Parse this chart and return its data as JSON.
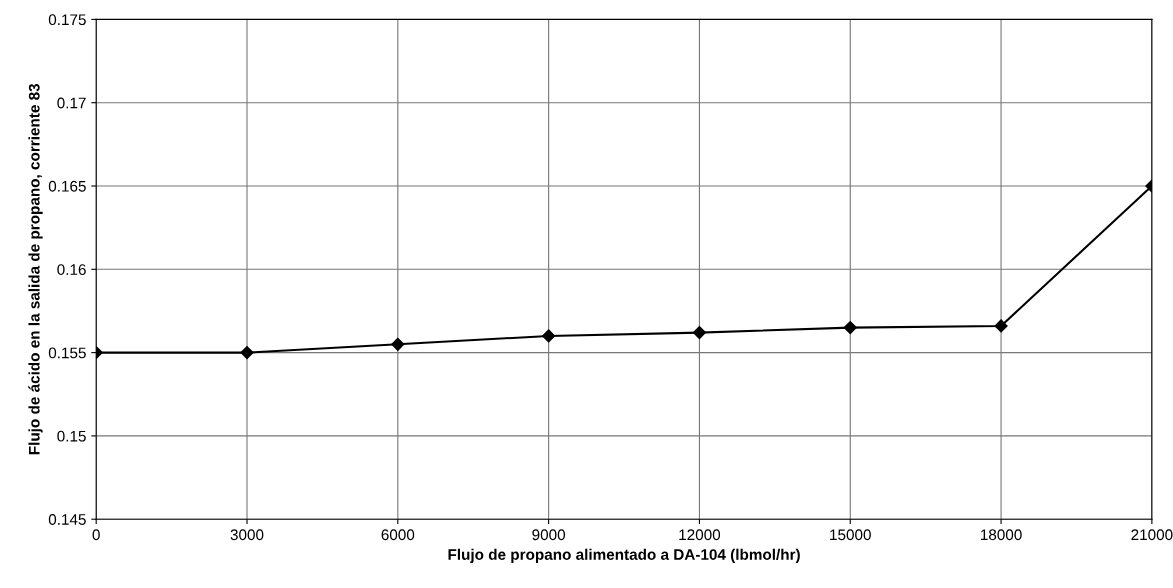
{
  "chart_data": {
    "type": "line",
    "xlabel": "Flujo de propano alimentado a DA-104 (lbmol/hr)",
    "ylabel": "Flujo de ácido en la salida de propano, corriente 83",
    "x": [
      0,
      3000,
      6000,
      9000,
      12000,
      15000,
      18000,
      21000
    ],
    "series": [
      {
        "color": "#000000",
        "values": [
          0.155,
          0.155,
          0.1555,
          0.156,
          0.1562,
          0.1565,
          0.1566,
          0.165
        ]
      }
    ],
    "xlim": [
      0,
      21000
    ],
    "xticks": [
      0,
      3000,
      6000,
      9000,
      12000,
      15000,
      18000,
      21000
    ],
    "ylim": [
      0.145,
      0.175
    ],
    "yticks": [
      {
        "value": 0.145,
        "label": "0.145"
      },
      {
        "value": 0.15,
        "label": "0.15"
      },
      {
        "value": 0.155,
        "label": "0.155"
      },
      {
        "value": 0.16,
        "label": "0.16"
      },
      {
        "value": 0.165,
        "label": "0.165"
      },
      {
        "value": 0.17,
        "label": "0.17"
      },
      {
        "value": 0.175,
        "label": "0.175"
      }
    ],
    "grid": true,
    "marker": "diamond",
    "line_style": "solid"
  }
}
